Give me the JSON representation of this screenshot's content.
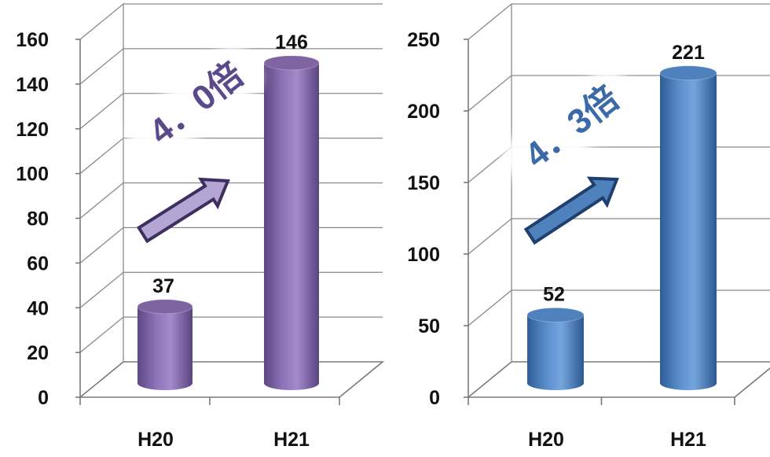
{
  "chart_data": [
    {
      "type": "bar",
      "categories": [
        "H20",
        "H21"
      ],
      "values": [
        37,
        146
      ],
      "ylim": [
        0,
        160
      ],
      "yticks": [
        0,
        20,
        40,
        60,
        80,
        100,
        120,
        140,
        160
      ],
      "data_labels": [
        "37",
        "146"
      ],
      "annotation": "4．0倍",
      "bar_color": "#8064a2",
      "arrow_fill": "#b5a5d4",
      "arrow_stroke": "#3f2f5e",
      "annotation_color": "#5b4a8b",
      "grid": true
    },
    {
      "type": "bar",
      "categories": [
        "H20",
        "H21"
      ],
      "values": [
        52,
        221
      ],
      "ylim": [
        0,
        250
      ],
      "yticks": [
        0,
        50,
        100,
        150,
        200,
        250
      ],
      "data_labels": [
        "52",
        "221"
      ],
      "annotation": "4．3倍",
      "bar_color": "#4f81bd",
      "arrow_fill": "#4f81bd",
      "arrow_stroke": "#1f3f6e",
      "annotation_color": "#3a6aa8",
      "grid": true
    }
  ]
}
